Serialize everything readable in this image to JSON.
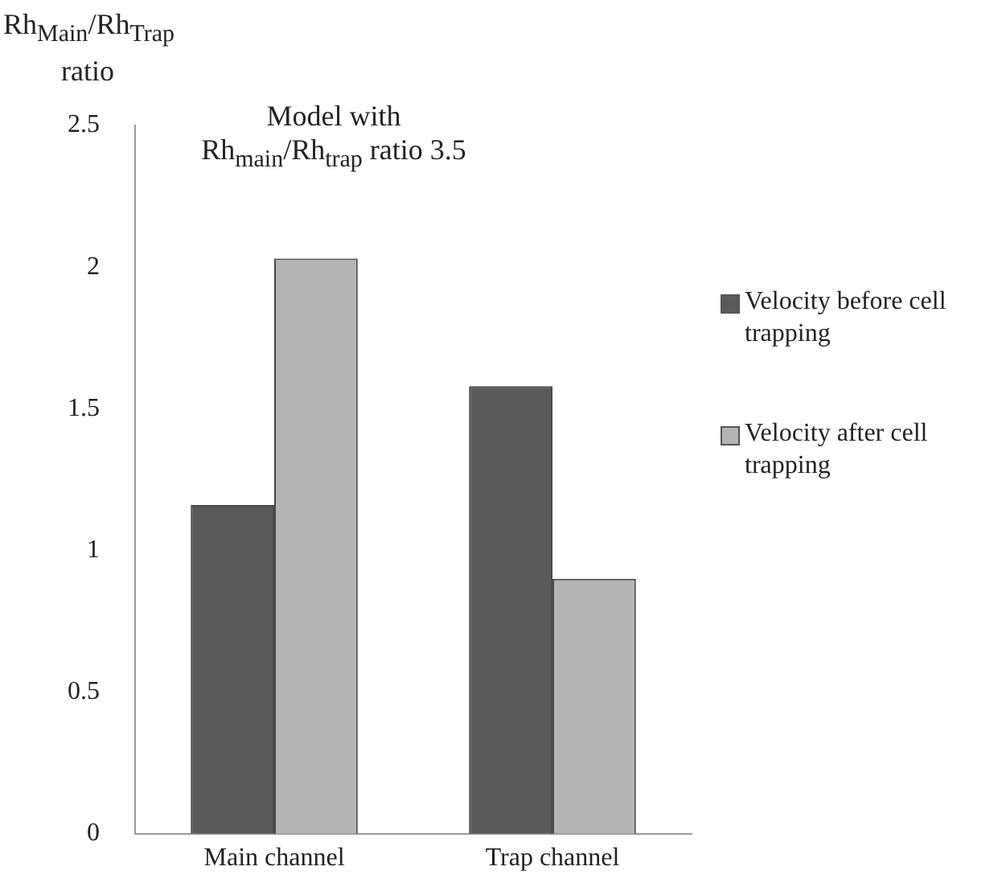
{
  "chart_data": {
    "type": "bar",
    "title": "Model with Rh$_{main}$/Rh$_{trap}$ ratio 3.5",
    "ylabel": "Rh$_{Main}$/Rh$_{Trap}$ ratio",
    "categories": [
      "Main channel",
      "Trap channel"
    ],
    "series": [
      {
        "name": "Velocity before cell trapping",
        "color": "#5a5a5a",
        "values": [
          1.16,
          1.58
        ]
      },
      {
        "name": "Velocity after cell trapping",
        "color": "#b4b4b4",
        "values": [
          2.03,
          0.9
        ]
      }
    ],
    "ylim": [
      0,
      2.5
    ],
    "yticks": [
      0,
      0.5,
      1,
      1.5,
      2,
      2.5
    ],
    "grid": false,
    "legend": "right"
  }
}
